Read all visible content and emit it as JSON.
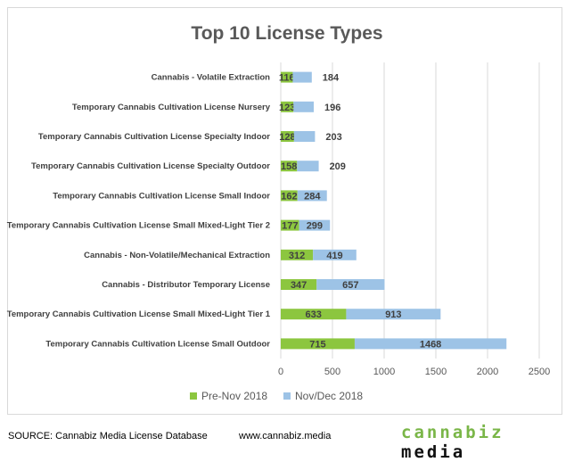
{
  "chart_data": {
    "type": "bar",
    "orientation": "horizontal",
    "stacked": true,
    "title": "Top 10 License Types",
    "categories": [
      "Cannabis - Volatile Extraction",
      "Temporary Cannabis Cultivation License Nursery",
      "Temporary Cannabis Cultivation License Specialty Indoor",
      "Temporary Cannabis Cultivation License Specialty Outdoor",
      "Temporary Cannabis Cultivation License Small Indoor",
      "Temporary Cannabis Cultivation License Small Mixed-Light Tier 2",
      "Cannabis - Non-Volatile/Mechanical Extraction",
      "Cannabis - Distributor Temporary License",
      "Temporary Cannabis Cultivation License Small Mixed-Light Tier 1",
      "Temporary Cannabis Cultivation License Small Outdoor"
    ],
    "series": [
      {
        "name": "Pre-Nov 2018",
        "color": "#8cc63f",
        "values": [
          116,
          123,
          128,
          158,
          162,
          177,
          312,
          347,
          633,
          715
        ]
      },
      {
        "name": "Nov/Dec 2018",
        "color": "#9dc3e6",
        "values": [
          184,
          196,
          203,
          209,
          284,
          299,
          419,
          657,
          913,
          1468
        ]
      }
    ],
    "xlim": [
      0,
      2500
    ],
    "xticks": [
      0,
      500,
      1000,
      1500,
      2000,
      2500
    ],
    "grid": true,
    "legend": "bottom"
  },
  "footer": {
    "source": "SOURCE: Cannabiz Media License Database",
    "url": "www.cannabiz.media",
    "logo_part1": "cannabiz",
    "logo_part2": "media"
  }
}
